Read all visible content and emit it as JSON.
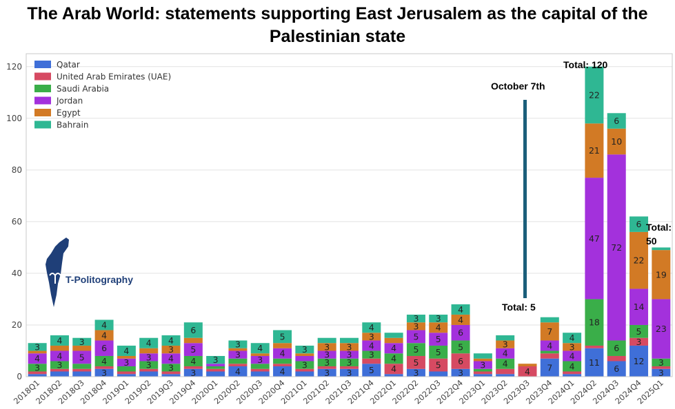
{
  "title": "The Arab World: statements supporting East Jerusalem as the capital of the Palestinian state",
  "logo_text": "T-Politography",
  "chart_data": {
    "type": "bar",
    "stacked": true,
    "title": "The Arab World: statements supporting East Jerusalem as the capital of the Palestinian state",
    "ylim": [
      0,
      125
    ],
    "yticks": [
      0,
      20,
      40,
      60,
      80,
      100,
      120
    ],
    "grid": "horizontal",
    "legend_position": "top-left",
    "categories": [
      "2018Q1",
      "2018Q2",
      "2018Q3",
      "2018Q4",
      "2019Q1",
      "2019Q2",
      "2019Q3",
      "2019Q4",
      "2020Q1",
      "2020Q2",
      "2020Q3",
      "2020Q4",
      "2021Q1",
      "2021Q2",
      "2021Q3",
      "2021Q4",
      "2022Q1",
      "2022Q2",
      "2022Q3",
      "2022Q4",
      "2023Q1",
      "2023Q2",
      "2023Q3",
      "2023Q4",
      "2024Q1",
      "2024Q2",
      "2024Q3",
      "2024Q4",
      "2025Q1"
    ],
    "series": [
      {
        "name": "Qatar",
        "color": "#3f6fd8",
        "values": [
          1,
          2,
          2,
          3,
          1,
          2,
          1,
          3,
          2,
          4,
          2,
          4,
          2,
          3,
          3,
          5,
          1,
          3,
          2,
          3,
          1,
          1,
          0,
          7,
          1,
          11,
          6,
          12,
          3
        ]
      },
      {
        "name": "United Arab Emirates  (UAE)",
        "color": "#d64a62",
        "values": [
          1,
          1,
          1,
          1,
          1,
          1,
          1,
          1,
          1,
          1,
          1,
          1,
          1,
          1,
          1,
          2,
          4,
          5,
          5,
          6,
          1,
          2,
          4,
          2,
          1,
          1,
          2,
          3,
          1
        ]
      },
      {
        "name": "Saudi Arabia",
        "color": "#3aae49",
        "values": [
          3,
          3,
          2,
          4,
          2,
          3,
          3,
          4,
          1,
          2,
          2,
          2,
          3,
          3,
          3,
          3,
          4,
          5,
          5,
          5,
          1,
          4,
          0,
          1,
          4,
          18,
          6,
          5,
          3
        ]
      },
      {
        "name": "Jordan",
        "color": "#a331dc",
        "values": [
          4,
          4,
          5,
          6,
          3,
          3,
          4,
          5,
          1,
          3,
          3,
          4,
          2,
          3,
          3,
          4,
          4,
          5,
          5,
          6,
          3,
          4,
          0,
          4,
          4,
          47,
          72,
          14,
          23
        ]
      },
      {
        "name": "Egypt",
        "color": "#d27a25",
        "values": [
          1,
          2,
          2,
          4,
          1,
          2,
          3,
          2,
          0,
          1,
          1,
          2,
          1,
          3,
          3,
          3,
          2,
          3,
          4,
          4,
          1,
          3,
          1,
          7,
          3,
          21,
          10,
          22,
          19
        ]
      },
      {
        "name": "Bahrain",
        "color": "#2fb793",
        "values": [
          3,
          4,
          3,
          4,
          4,
          4,
          4,
          6,
          3,
          3,
          4,
          5,
          3,
          2,
          2,
          4,
          2,
          3,
          3,
          4,
          2,
          2,
          0,
          2,
          4,
          22,
          6,
          6,
          1
        ]
      }
    ],
    "visible_labels": [
      [
        3,
        4,
        3,
        4,
        4,
        4,
        4,
        6,
        3,
        3,
        4,
        5,
        3,
        2,
        2,
        4,
        2,
        3,
        3,
        4,
        2,
        2,
        0,
        2,
        4,
        22,
        6,
        6,
        1
      ]
    ],
    "annotations": [
      {
        "text": "October 7th"
      },
      {
        "text": "Total: 5"
      },
      {
        "text": "Total: 120"
      },
      {
        "text": "Total:"
      },
      {
        "text": "50"
      }
    ]
  }
}
